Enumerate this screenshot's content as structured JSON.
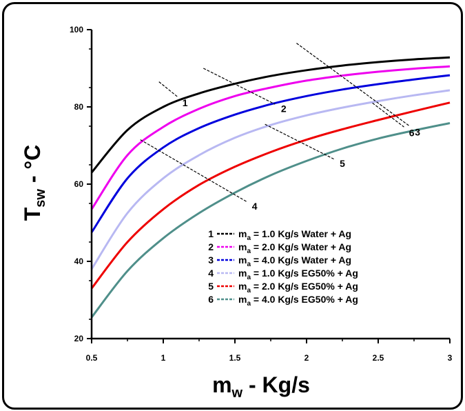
{
  "chart_data": {
    "type": "line",
    "title": "",
    "xlabel": {
      "main": "m",
      "sub": "w",
      "rest": " - Kg/s"
    },
    "ylabel": {
      "main": "T",
      "sub": "sw",
      "rest": " - °C"
    },
    "xlim": [
      0.5,
      3
    ],
    "ylim": [
      20,
      100
    ],
    "xticks": [
      "0.5",
      "1",
      "1.5",
      "2",
      "2.5",
      "3"
    ],
    "yticks": [
      "20",
      "40",
      "60",
      "80",
      "100"
    ],
    "legend_position": "bottom-right",
    "series": [
      {
        "id": "1",
        "color": "#000000",
        "legend": {
          "num": "1",
          "m": "m",
          "sub": "a",
          "text": " = 1.0 Kg/s Water + Ag"
        },
        "x": [
          0.5,
          0.75,
          1.0,
          1.25,
          1.5,
          1.75,
          2.0,
          2.25,
          2.5,
          2.75,
          3.0
        ],
        "y": [
          63,
          74,
          80,
          83.5,
          86,
          88,
          89.5,
          90.7,
          91.6,
          92.3,
          92.8
        ]
      },
      {
        "id": "2",
        "color": "#ee00ee",
        "legend": {
          "num": "2",
          "m": "m",
          "sub": "a",
          "text": " = 2.0 Kg/s Water + Ag"
        },
        "x": [
          0.5,
          0.75,
          1.0,
          1.25,
          1.5,
          1.75,
          2.0,
          2.25,
          2.5,
          2.75,
          3.0
        ],
        "y": [
          53.5,
          67.5,
          74.8,
          79.5,
          82.8,
          85,
          86.8,
          88.1,
          89.1,
          89.9,
          90.5
        ]
      },
      {
        "id": "3",
        "color": "#0000dd",
        "legend": {
          "num": "3",
          "m": "m",
          "sub": "a",
          "text": " = 4.0 Kg/s Water + Ag"
        },
        "x": [
          0.5,
          0.75,
          1.0,
          1.25,
          1.5,
          1.75,
          2.0,
          2.25,
          2.5,
          2.75,
          3.0
        ],
        "y": [
          47.5,
          61.5,
          69.5,
          74.5,
          78,
          80.7,
          82.8,
          84.5,
          85.9,
          87.1,
          88.2
        ]
      },
      {
        "id": "4",
        "color": "#b8b8f2",
        "legend": {
          "num": "4",
          "m": "m",
          "sub": "a",
          "text": " = 1.0 Kg/s EG50% + Ag"
        },
        "x": [
          0.5,
          0.75,
          1.0,
          1.25,
          1.5,
          1.75,
          2.0,
          2.25,
          2.5,
          2.75,
          3.0
        ],
        "y": [
          38,
          52.5,
          61.5,
          67.5,
          72,
          75.3,
          77.8,
          79.8,
          81.5,
          83,
          84.3
        ]
      },
      {
        "id": "5",
        "color": "#ee0000",
        "legend": {
          "num": "5",
          "m": "m",
          "sub": "a",
          "text": " = 2.0 Kg/s EG50% + Ag"
        },
        "x": [
          0.5,
          0.75,
          1.0,
          1.25,
          1.5,
          1.75,
          2.0,
          2.25,
          2.5,
          2.75,
          3.0
        ],
        "y": [
          33,
          45,
          53.5,
          59.8,
          64.5,
          68.3,
          71.5,
          74.2,
          76.6,
          78.9,
          81.1
        ]
      },
      {
        "id": "6",
        "color": "#4f8f8a",
        "legend": {
          "num": "6",
          "m": "m",
          "sub": "a",
          "text": " = 4.0 Kg/s EG50% + Ag"
        },
        "x": [
          0.5,
          0.75,
          1.0,
          1.25,
          1.5,
          1.75,
          2.0,
          2.25,
          2.5,
          2.75,
          3.0
        ],
        "y": [
          25.5,
          37.5,
          46,
          52.5,
          57.8,
          62.3,
          66,
          69.2,
          71.8,
          73.9,
          75.8
        ]
      }
    ],
    "annotations": [
      {
        "label": "1",
        "x1": 0.97,
        "y1": 86.5,
        "x2": 1.1,
        "y2": 82.6
      },
      {
        "label": "2",
        "x1": 1.28,
        "y1": 90,
        "x2": 1.78,
        "y2": 80.7
      },
      {
        "label": "3",
        "x1": 1.93,
        "y1": 96.5,
        "x2": 2.72,
        "y2": 75
      },
      {
        "label": "4",
        "x1": 0.84,
        "y1": 71.5,
        "x2": 1.58,
        "y2": 55.5
      },
      {
        "label": "5",
        "x1": 1.71,
        "y1": 75.5,
        "x2": 2.19,
        "y2": 66.5
      },
      {
        "label": "6",
        "x1": 2.46,
        "y1": 81,
        "x2": 2.68,
        "y2": 74.8
      }
    ]
  }
}
